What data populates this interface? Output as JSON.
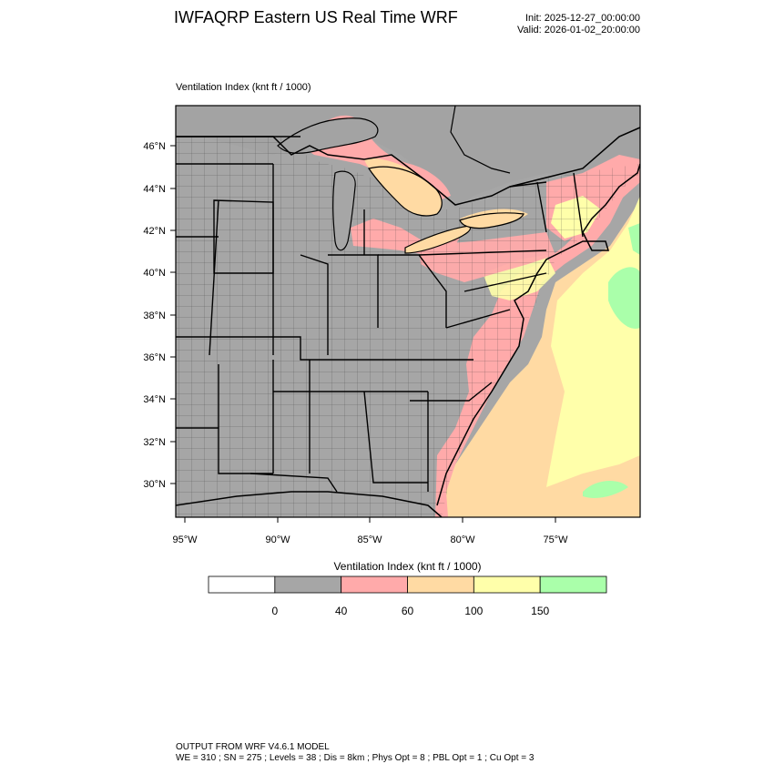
{
  "header": {
    "title": "IWFAQRP Eastern US Real Time WRF",
    "init": "Init: 2025-12-27_00:00:00",
    "valid": "Valid: 2026-01-02_20:00:00"
  },
  "map": {
    "field_label": "Ventilation Index   (knt ft / 1000)",
    "lat_labels": [
      "46°N",
      "44°N",
      "42°N",
      "40°N",
      "38°N",
      "36°N",
      "34°N",
      "32°N",
      "30°N"
    ],
    "lon_labels": [
      "95°W",
      "90°W",
      "85°W",
      "80°W",
      "75°W"
    ],
    "colors": {
      "below_0": "#ffffff",
      "0_40": "#a6a6a6",
      "40_60": "#ffaaaa",
      "60_100": "#ffdaa3",
      "100_150": "#ffffaa",
      "above_150": "#aaffaa",
      "boundary": "#000000"
    }
  },
  "colorbar": {
    "title": "Ventilation Index  (knt ft / 1000)",
    "bins": [
      {
        "range": "<0",
        "color": "#ffffff"
      },
      {
        "range": "0-40",
        "color": "#a6a6a6"
      },
      {
        "range": "40-60",
        "color": "#ffaaaa"
      },
      {
        "range": "60-100",
        "color": "#ffdaa3"
      },
      {
        "range": "100-150",
        "color": "#ffffaa"
      },
      {
        "range": ">150",
        "color": "#aaffaa"
      }
    ],
    "ticks": [
      "0",
      "40",
      "60",
      "100",
      "150"
    ]
  },
  "footer": {
    "line1": "OUTPUT FROM WRF V4.6.1 MODEL",
    "line2": "WE = 310 ; SN = 275 ; Levels = 38 ; Dis = 8km ; Phys Opt = 8 ; PBL Opt = 1 ; Cu Opt = 3"
  }
}
